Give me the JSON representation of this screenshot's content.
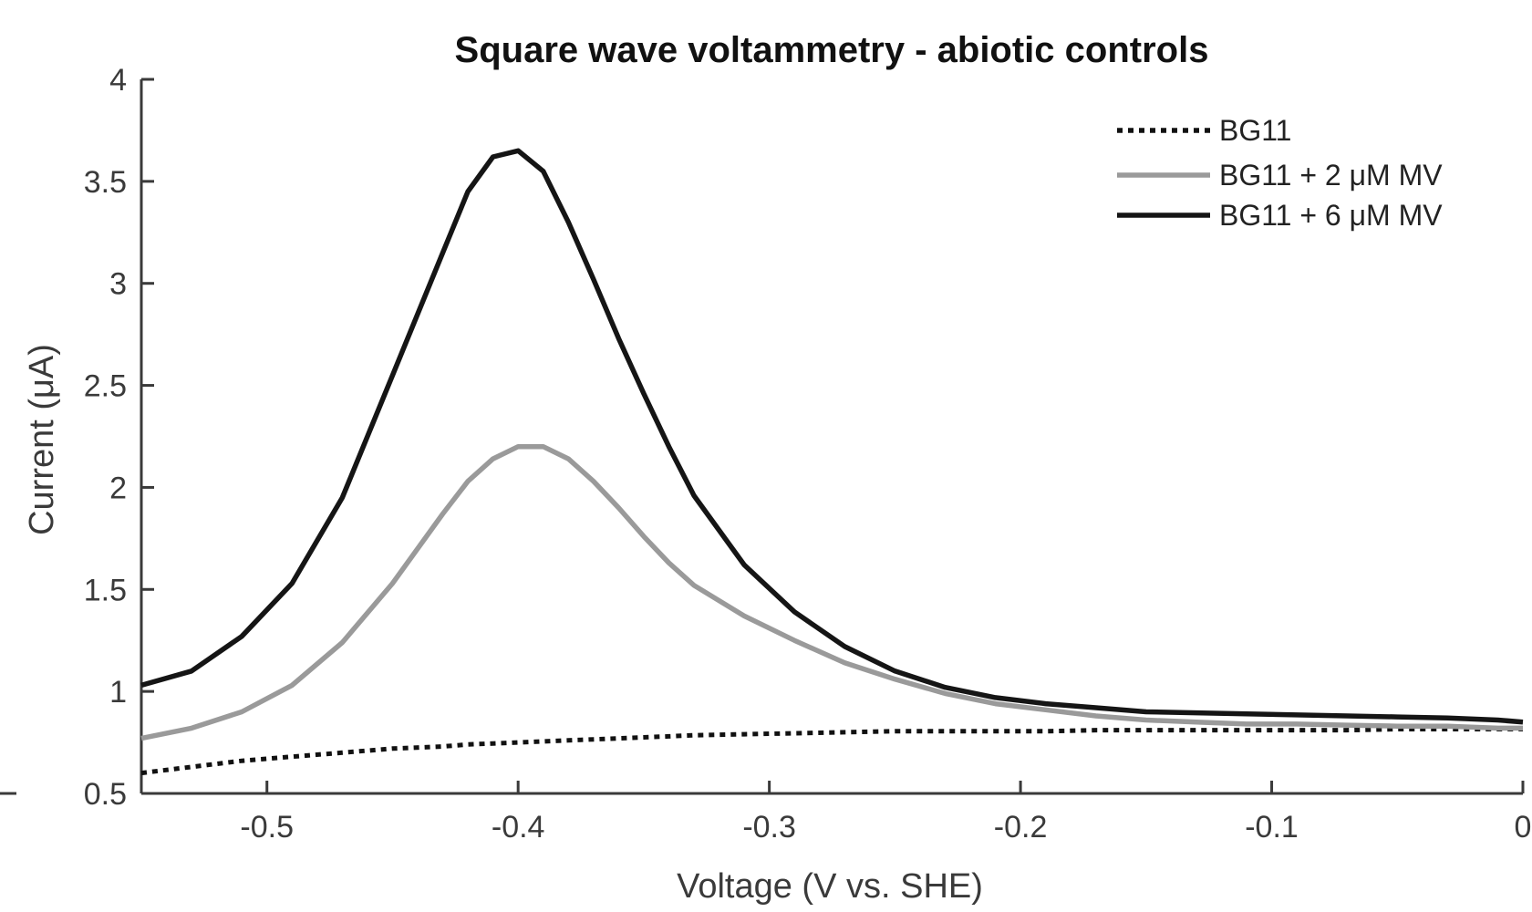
{
  "chart_data": {
    "type": "line",
    "title": "Square wave voltammetry - abiotic controls",
    "xlabel": "Voltage (V vs. SHE)",
    "ylabel": "Current (μA)",
    "xlim": [
      -0.55,
      0
    ],
    "ylim": [
      0.5,
      4
    ],
    "xticks": [
      -0.5,
      -0.4,
      -0.3,
      -0.2,
      -0.1,
      0
    ],
    "xtick_labels": [
      "-0.5",
      "-0.4",
      "-0.3",
      "-0.2",
      "-0.1",
      "0"
    ],
    "yticks": [
      0.5,
      1,
      1.5,
      2,
      2.5,
      3,
      3.5,
      4
    ],
    "ytick_labels": [
      "0.5",
      "1",
      "1.5",
      "2",
      "2.5",
      "3",
      "3.5",
      "4"
    ],
    "grid": false,
    "legend_position": "top-right",
    "x": [
      -0.55,
      -0.53,
      -0.51,
      -0.49,
      -0.47,
      -0.45,
      -0.43,
      -0.42,
      -0.41,
      -0.4,
      -0.39,
      -0.38,
      -0.37,
      -0.36,
      -0.35,
      -0.34,
      -0.33,
      -0.31,
      -0.29,
      -0.27,
      -0.25,
      -0.23,
      -0.21,
      -0.19,
      -0.17,
      -0.15,
      -0.13,
      -0.11,
      -0.09,
      -0.07,
      -0.05,
      -0.03,
      -0.01,
      0.0
    ],
    "series": [
      {
        "name": "BG11",
        "color": "#111111",
        "style": "dotted",
        "values": [
          0.6,
          0.63,
          0.66,
          0.68,
          0.7,
          0.72,
          0.73,
          0.74,
          0.745,
          0.75,
          0.755,
          0.76,
          0.765,
          0.77,
          0.775,
          0.78,
          0.785,
          0.79,
          0.795,
          0.8,
          0.805,
          0.805,
          0.805,
          0.805,
          0.81,
          0.81,
          0.81,
          0.81,
          0.81,
          0.81,
          0.815,
          0.815,
          0.815,
          0.815
        ]
      },
      {
        "name": "BG11 + 2 μM MV",
        "color": "#9a9a9a",
        "style": "solid",
        "values": [
          0.77,
          0.82,
          0.9,
          1.03,
          1.24,
          1.53,
          1.87,
          2.03,
          2.14,
          2.2,
          2.2,
          2.14,
          2.03,
          1.9,
          1.76,
          1.63,
          1.52,
          1.37,
          1.25,
          1.14,
          1.06,
          0.99,
          0.94,
          0.91,
          0.88,
          0.86,
          0.85,
          0.84,
          0.84,
          0.835,
          0.83,
          0.83,
          0.82,
          0.82
        ]
      },
      {
        "name": "BG11 + 6 μM MV",
        "color": "#151515",
        "style": "solid",
        "values": [
          1.03,
          1.1,
          1.27,
          1.53,
          1.95,
          2.55,
          3.15,
          3.45,
          3.62,
          3.65,
          3.55,
          3.3,
          3.02,
          2.73,
          2.46,
          2.2,
          1.96,
          1.62,
          1.39,
          1.22,
          1.1,
          1.02,
          0.97,
          0.94,
          0.92,
          0.9,
          0.895,
          0.89,
          0.885,
          0.88,
          0.875,
          0.87,
          0.86,
          0.85
        ]
      }
    ]
  }
}
